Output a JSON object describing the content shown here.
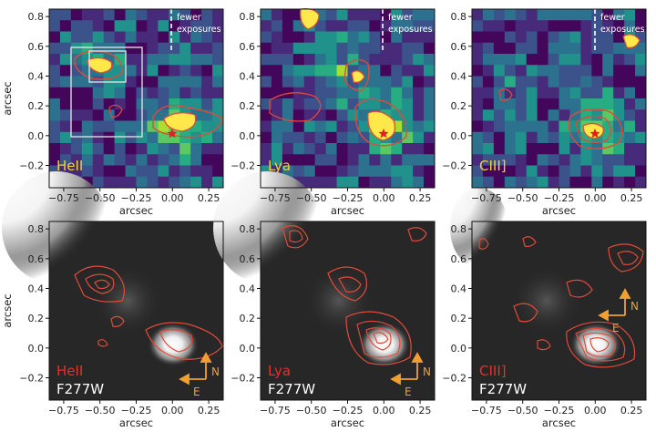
{
  "axes": {
    "xlabel": "arcsec",
    "ylabel": "arcsec",
    "xticks": [
      "−0.75",
      "−0.50",
      "−0.25",
      "0.00",
      "0.25"
    ],
    "yticks": [
      "0.8",
      "0.6",
      "0.4",
      "0.2",
      "0.0",
      "−0.2"
    ],
    "xlim": [
      -0.85,
      0.35
    ],
    "ylim": [
      -0.35,
      0.85
    ]
  },
  "top_row": [
    {
      "line": "HeII",
      "annotation": [
        "fewer",
        "exposures"
      ]
    },
    {
      "line": "Lya",
      "annotation": [
        "fewer",
        "exposures"
      ]
    },
    {
      "line": "CIII]",
      "annotation": [
        "fewer",
        "exposures"
      ]
    }
  ],
  "bottom_row": [
    {
      "line": "HeII",
      "band": "F277W",
      "compass": true,
      "compass_n": "N",
      "compass_e": "E"
    },
    {
      "line": "Lya",
      "band": "F277W",
      "compass": true,
      "compass_n": "N",
      "compass_e": "E"
    },
    {
      "line": "CIII]",
      "band": "F277W",
      "compass": true,
      "compass_n": "N",
      "compass_e": "E"
    }
  ],
  "colors": {
    "tag_top": "#f0d23a",
    "tag_bottom_line": "#e8302a",
    "tag_bottom_band": "#ffffff",
    "contour": "#e04a3a",
    "compass": "#f0a030",
    "star": "#e02020",
    "box": "#e8e8e8"
  }
}
